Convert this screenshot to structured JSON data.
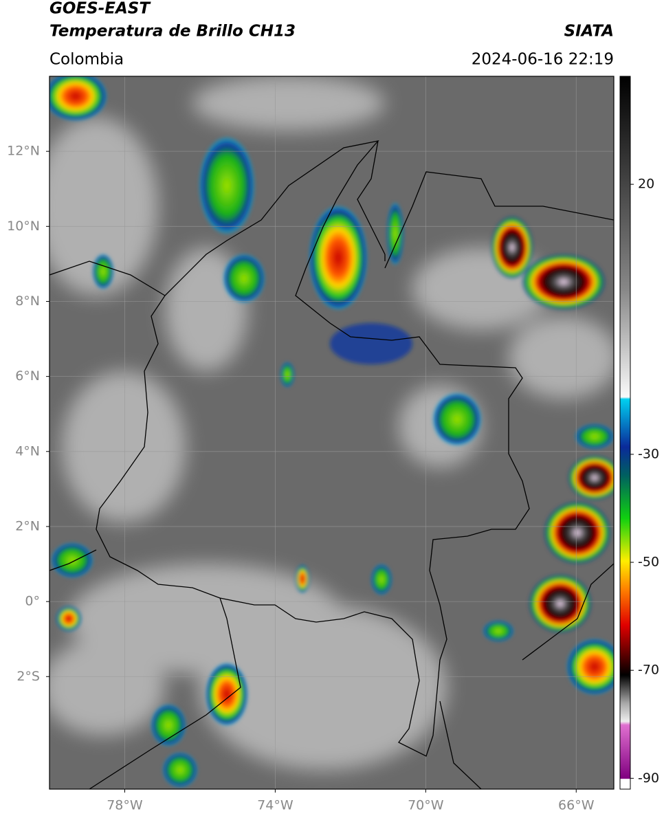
{
  "header": {
    "satellite": "GOES-EAST",
    "product": "Temperatura de Brillo CH13",
    "source": "SIATA",
    "region": "Colombia",
    "datetime": "2024-06-16 22:19"
  },
  "map": {
    "lonlim": [
      -80,
      -65
    ],
    "latlim": [
      -5,
      14
    ],
    "lat_ticks": [
      {
        "value": 12,
        "label": "12°N"
      },
      {
        "value": 10,
        "label": "10°N"
      },
      {
        "value": 8,
        "label": "8°N"
      },
      {
        "value": 6,
        "label": "6°N"
      },
      {
        "value": 4,
        "label": "4°N"
      },
      {
        "value": 2,
        "label": "2°N"
      },
      {
        "value": 0,
        "label": "0°"
      },
      {
        "value": -2,
        "label": "2°S"
      }
    ],
    "lon_ticks": [
      {
        "value": -78,
        "label": "78°W"
      },
      {
        "value": -74,
        "label": "74°W"
      },
      {
        "value": -70,
        "label": "70°W"
      },
      {
        "value": -66,
        "label": "66°W"
      }
    ],
    "grid": true
  },
  "colorbar": {
    "lim": [
      -92,
      40
    ],
    "ticks": [
      20,
      -30,
      -50,
      -70,
      -90
    ]
  }
}
